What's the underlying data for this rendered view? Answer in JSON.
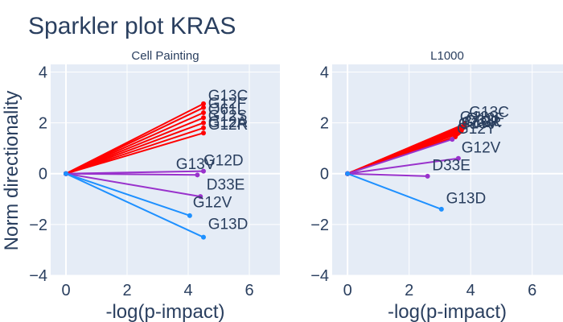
{
  "figure": {
    "title": "Sparkler plot KRAS",
    "ylabel": "Norm directionality",
    "colors": {
      "up": "#ff0000",
      "mid": "#9932cc",
      "down": "#1e90ff",
      "background": "#e5ecf6",
      "text": "#2a3f5f"
    }
  },
  "chart_data": [
    {
      "type": "line",
      "title": "Cell Painting",
      "xlabel": "-log(p-impact)",
      "ylabel": "Norm directionality",
      "xlim": [
        -0.5,
        7
      ],
      "ylim": [
        -4,
        4.3
      ],
      "xticks": [
        0,
        2,
        4,
        6
      ],
      "yticks": [
        -4,
        -2,
        0,
        2,
        4
      ],
      "tick_labels_x": [
        "0",
        "2",
        "4",
        "6"
      ],
      "tick_labels_y": [
        "−4",
        "−2",
        "0",
        "2",
        "4"
      ],
      "grid": true,
      "series": [
        {
          "x": [
            0,
            4.5
          ],
          "y": [
            0,
            2.75
          ],
          "color": "#ff0000"
        },
        {
          "x": [
            0,
            4.5
          ],
          "y": [
            0,
            2.6
          ],
          "color": "#ff0000"
        },
        {
          "x": [
            0,
            4.5
          ],
          "y": [
            0,
            2.4
          ],
          "color": "#ff0000"
        },
        {
          "x": [
            0,
            4.5
          ],
          "y": [
            0,
            2.2
          ],
          "color": "#ff0000"
        },
        {
          "x": [
            0,
            4.5
          ],
          "y": [
            0,
            2.0
          ],
          "color": "#ff0000"
        },
        {
          "x": [
            0,
            4.5
          ],
          "y": [
            0,
            1.8
          ],
          "color": "#ff0000"
        },
        {
          "x": [
            0,
            4.5
          ],
          "y": [
            0,
            1.6
          ],
          "color": "#ff0000"
        },
        {
          "x": [
            0,
            4.5
          ],
          "y": [
            0,
            0.1
          ],
          "color": "#9932cc"
        },
        {
          "x": [
            0,
            4.3
          ],
          "y": [
            0,
            -0.05
          ],
          "color": "#9932cc"
        },
        {
          "x": [
            0,
            4.4
          ],
          "y": [
            0,
            -0.9
          ],
          "color": "#9932cc"
        },
        {
          "x": [
            0,
            4.05
          ],
          "y": [
            0,
            -1.65
          ],
          "color": "#1e90ff"
        },
        {
          "x": [
            0,
            4.5
          ],
          "y": [
            0,
            -2.5
          ],
          "color": "#1e90ff"
        }
      ],
      "annotations": [
        {
          "text": "G13C",
          "x": 4.65,
          "y": 3.1
        },
        {
          "text": "G12F",
          "x": 4.65,
          "y": 2.8
        },
        {
          "text": "Q61L",
          "x": 4.65,
          "y": 2.55
        },
        {
          "text": "G12S",
          "x": 4.65,
          "y": 2.3
        },
        {
          "text": "G12A",
          "x": 4.65,
          "y": 2.05
        },
        {
          "text": "G12R",
          "x": 4.65,
          "y": 1.95
        },
        {
          "text": "G12D",
          "x": 4.5,
          "y": 0.55
        },
        {
          "text": "G13V",
          "x": 3.6,
          "y": 0.4
        },
        {
          "text": "D33E",
          "x": 4.6,
          "y": -0.4
        },
        {
          "text": "G12V",
          "x": 4.15,
          "y": -1.1
        },
        {
          "text": "G13D",
          "x": 4.65,
          "y": -1.95
        }
      ]
    },
    {
      "type": "line",
      "title": "L1000",
      "xlabel": "-log(p-impact)",
      "ylabel": "",
      "xlim": [
        -0.5,
        7
      ],
      "ylim": [
        -4,
        4.3
      ],
      "xticks": [
        0,
        2,
        4,
        6
      ],
      "yticks": [
        -4,
        -2,
        0,
        2,
        4
      ],
      "tick_labels_x": [
        "0",
        "2",
        "4",
        "6"
      ],
      "tick_labels_y": [
        "−4",
        "−2",
        "0",
        "2",
        "4"
      ],
      "grid": true,
      "series": [
        {
          "x": [
            0,
            3.8
          ],
          "y": [
            0,
            1.95
          ],
          "color": "#ff0000"
        },
        {
          "x": [
            0,
            3.8
          ],
          "y": [
            0,
            1.9
          ],
          "color": "#ff0000"
        },
        {
          "x": [
            0,
            3.8
          ],
          "y": [
            0,
            1.85
          ],
          "color": "#ff0000"
        },
        {
          "x": [
            0,
            3.75
          ],
          "y": [
            0,
            1.8
          ],
          "color": "#ff0000"
        },
        {
          "x": [
            0,
            3.7
          ],
          "y": [
            0,
            1.75
          ],
          "color": "#ff0000"
        },
        {
          "x": [
            0,
            3.7
          ],
          "y": [
            0,
            1.7
          ],
          "color": "#ff0000"
        },
        {
          "x": [
            0,
            3.65
          ],
          "y": [
            0,
            1.65
          ],
          "color": "#ff0000"
        },
        {
          "x": [
            0,
            3.6
          ],
          "y": [
            0,
            1.6
          ],
          "color": "#ff0000"
        },
        {
          "x": [
            0,
            3.55
          ],
          "y": [
            0,
            1.55
          ],
          "color": "#ff0000"
        },
        {
          "x": [
            0,
            3.5
          ],
          "y": [
            0,
            1.45
          ],
          "color": "#ff0000"
        },
        {
          "x": [
            0,
            3.4
          ],
          "y": [
            0,
            1.35
          ],
          "color": "#9932cc"
        },
        {
          "x": [
            0,
            3.6
          ],
          "y": [
            0,
            0.6
          ],
          "color": "#9932cc"
        },
        {
          "x": [
            0,
            2.6
          ],
          "y": [
            0,
            -0.1
          ],
          "color": "#9932cc"
        },
        {
          "x": [
            0,
            3.05
          ],
          "y": [
            0,
            -1.4
          ],
          "color": "#1e90ff"
        }
      ],
      "annotations": [
        {
          "text": "G13C",
          "x": 3.95,
          "y": 2.45
        },
        {
          "text": "G12S",
          "x": 3.65,
          "y": 2.25
        },
        {
          "text": "G12F",
          "x": 3.85,
          "y": 2.2
        },
        {
          "text": "Q61L",
          "x": 3.8,
          "y": 2.1
        },
        {
          "text": "G12R",
          "x": 3.7,
          "y": 2.05
        },
        {
          "text": "G13V",
          "x": 3.6,
          "y": 2.0
        },
        {
          "text": "G12Y",
          "x": 3.55,
          "y": 1.8
        },
        {
          "text": "G12V",
          "x": 3.7,
          "y": 1.05
        },
        {
          "text": "D33E",
          "x": 2.75,
          "y": 0.35
        },
        {
          "text": "G13D",
          "x": 3.2,
          "y": -0.95
        }
      ]
    }
  ]
}
